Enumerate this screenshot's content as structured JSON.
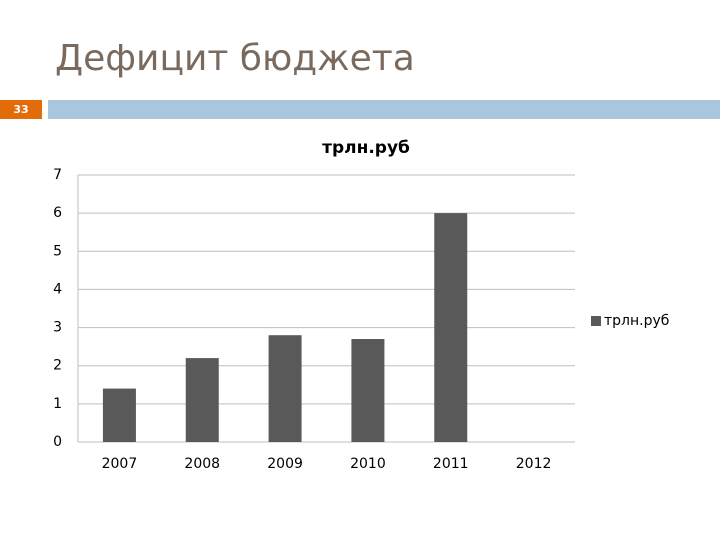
{
  "slide": {
    "title": "Дефицит бюджета",
    "number": "33"
  },
  "chart_data": {
    "type": "bar",
    "title": "трлн.руб",
    "categories": [
      "2007",
      "2008",
      "2009",
      "2010",
      "2011",
      "2012"
    ],
    "series": [
      {
        "name": "трлн.руб",
        "color": "#595959",
        "values": [
          1.4,
          2.2,
          2.8,
          2.7,
          6.0,
          null
        ]
      }
    ],
    "ylim": [
      0,
      7
    ],
    "yticks": [
      0,
      1,
      2,
      3,
      4,
      5,
      6,
      7
    ],
    "grid": true,
    "legend": "right"
  }
}
